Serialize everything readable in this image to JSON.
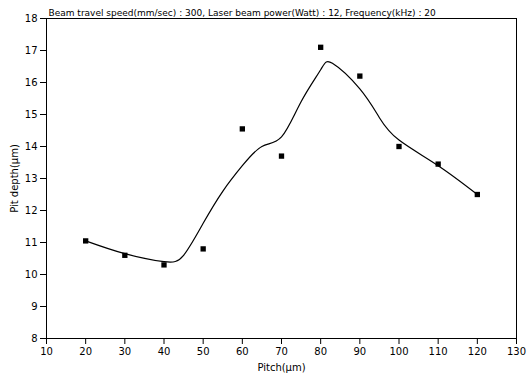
{
  "chart_data": {
    "type": "scatter",
    "title": "Beam travel speed(mm/sec) : 300, Laser beam power(Watt) : 12, Frequency(kHz) : 20",
    "x_label": "Pitch(μm)",
    "y_label": "Pit depth(μm)",
    "xlim": [
      10,
      130
    ],
    "xticks": [
      10,
      20,
      30,
      40,
      50,
      60,
      70,
      80,
      90,
      100,
      110,
      120,
      130
    ],
    "ylim": [
      8,
      18
    ],
    "yticks": [
      8,
      9,
      10,
      11,
      12,
      13,
      14,
      15,
      16,
      17,
      18
    ],
    "grid": false,
    "series": [
      {
        "type": "scatter",
        "marker": "square",
        "color": "#000000",
        "x": [
          20,
          30,
          40,
          50,
          60,
          70,
          80,
          90,
          100,
          110,
          120
        ],
        "values": [
          11.05,
          10.6,
          10.3,
          10.8,
          14.55,
          13.7,
          17.1,
          16.2,
          14.0,
          13.45,
          12.5
        ]
      },
      {
        "type": "line",
        "line_style": "solid",
        "color": "#000000",
        "x": [
          20,
          30,
          40,
          45,
          50,
          55,
          60,
          65,
          70,
          75,
          80,
          83,
          90,
          95,
          100,
          110,
          120
        ],
        "values": [
          11.05,
          10.65,
          10.4,
          10.6,
          11.6,
          12.6,
          13.4,
          14.0,
          14.3,
          15.4,
          16.4,
          16.6,
          15.8,
          14.9,
          14.2,
          13.4,
          12.5
        ]
      }
    ]
  }
}
